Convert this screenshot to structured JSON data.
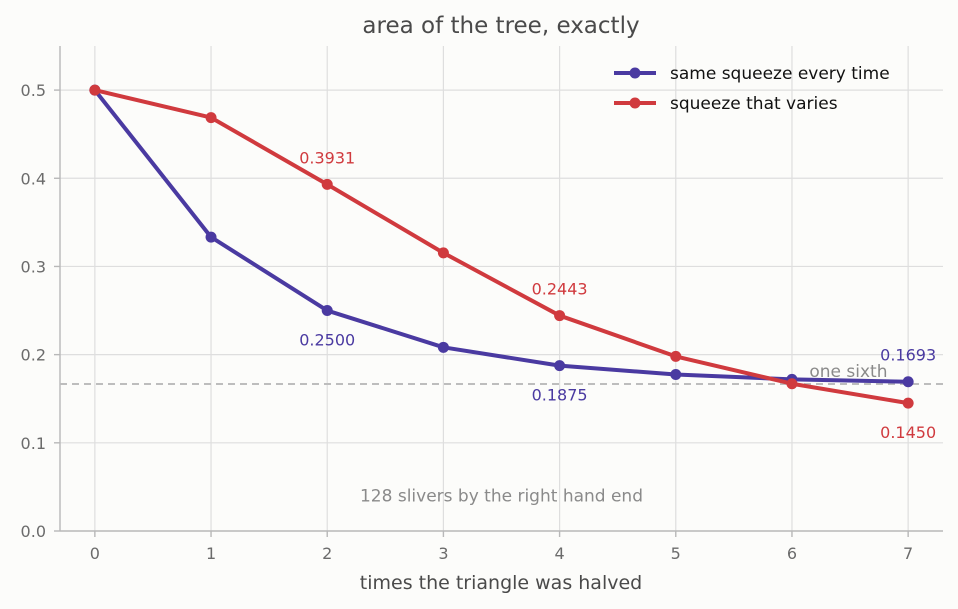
{
  "chart_data": {
    "type": "line",
    "title": "area of the tree, exactly",
    "xlabel": "times the triangle was halved",
    "ylabel": "",
    "x": [
      0,
      1,
      2,
      3,
      4,
      5,
      6,
      7
    ],
    "xlim": [
      -0.3,
      7.3
    ],
    "ylim": [
      0,
      0.55
    ],
    "xticks": [
      0,
      1,
      2,
      3,
      4,
      5,
      6,
      7
    ],
    "yticks": [
      0.0,
      0.1,
      0.2,
      0.3,
      0.4,
      0.5
    ],
    "ytick_labels": [
      "0.0",
      "0.1",
      "0.2",
      "0.3",
      "0.4",
      "0.5"
    ],
    "grid": true,
    "legend_position": "top-right",
    "series": [
      {
        "name": "same squeeze every time",
        "color": "#4a3aa1",
        "values": [
          0.5,
          0.3333,
          0.25,
          0.2083,
          0.1875,
          0.1775,
          0.172,
          0.1693
        ]
      },
      {
        "name": "squeeze that varies",
        "color": "#d03a3e",
        "values": [
          0.5,
          0.4688,
          0.3931,
          0.3154,
          0.2443,
          0.198,
          0.167,
          0.145
        ]
      }
    ],
    "data_labels": [
      {
        "series": 0,
        "index": 2,
        "text": "0.2500",
        "placement": "below"
      },
      {
        "series": 0,
        "index": 4,
        "text": "0.1875",
        "placement": "below"
      },
      {
        "series": 0,
        "index": 7,
        "text": "0.1693",
        "placement": "above"
      },
      {
        "series": 1,
        "index": 2,
        "text": "0.3931",
        "placement": "above"
      },
      {
        "series": 1,
        "index": 4,
        "text": "0.2443",
        "placement": "above"
      },
      {
        "series": 1,
        "index": 7,
        "text": "0.1450",
        "placement": "below"
      }
    ],
    "reference_line": {
      "y": 0.16667,
      "label": "one sixth",
      "color": "#bdbdbd"
    },
    "annotation": {
      "text": "128 slivers by the right hand end",
      "x": 3.5,
      "y": 0.04
    }
  }
}
